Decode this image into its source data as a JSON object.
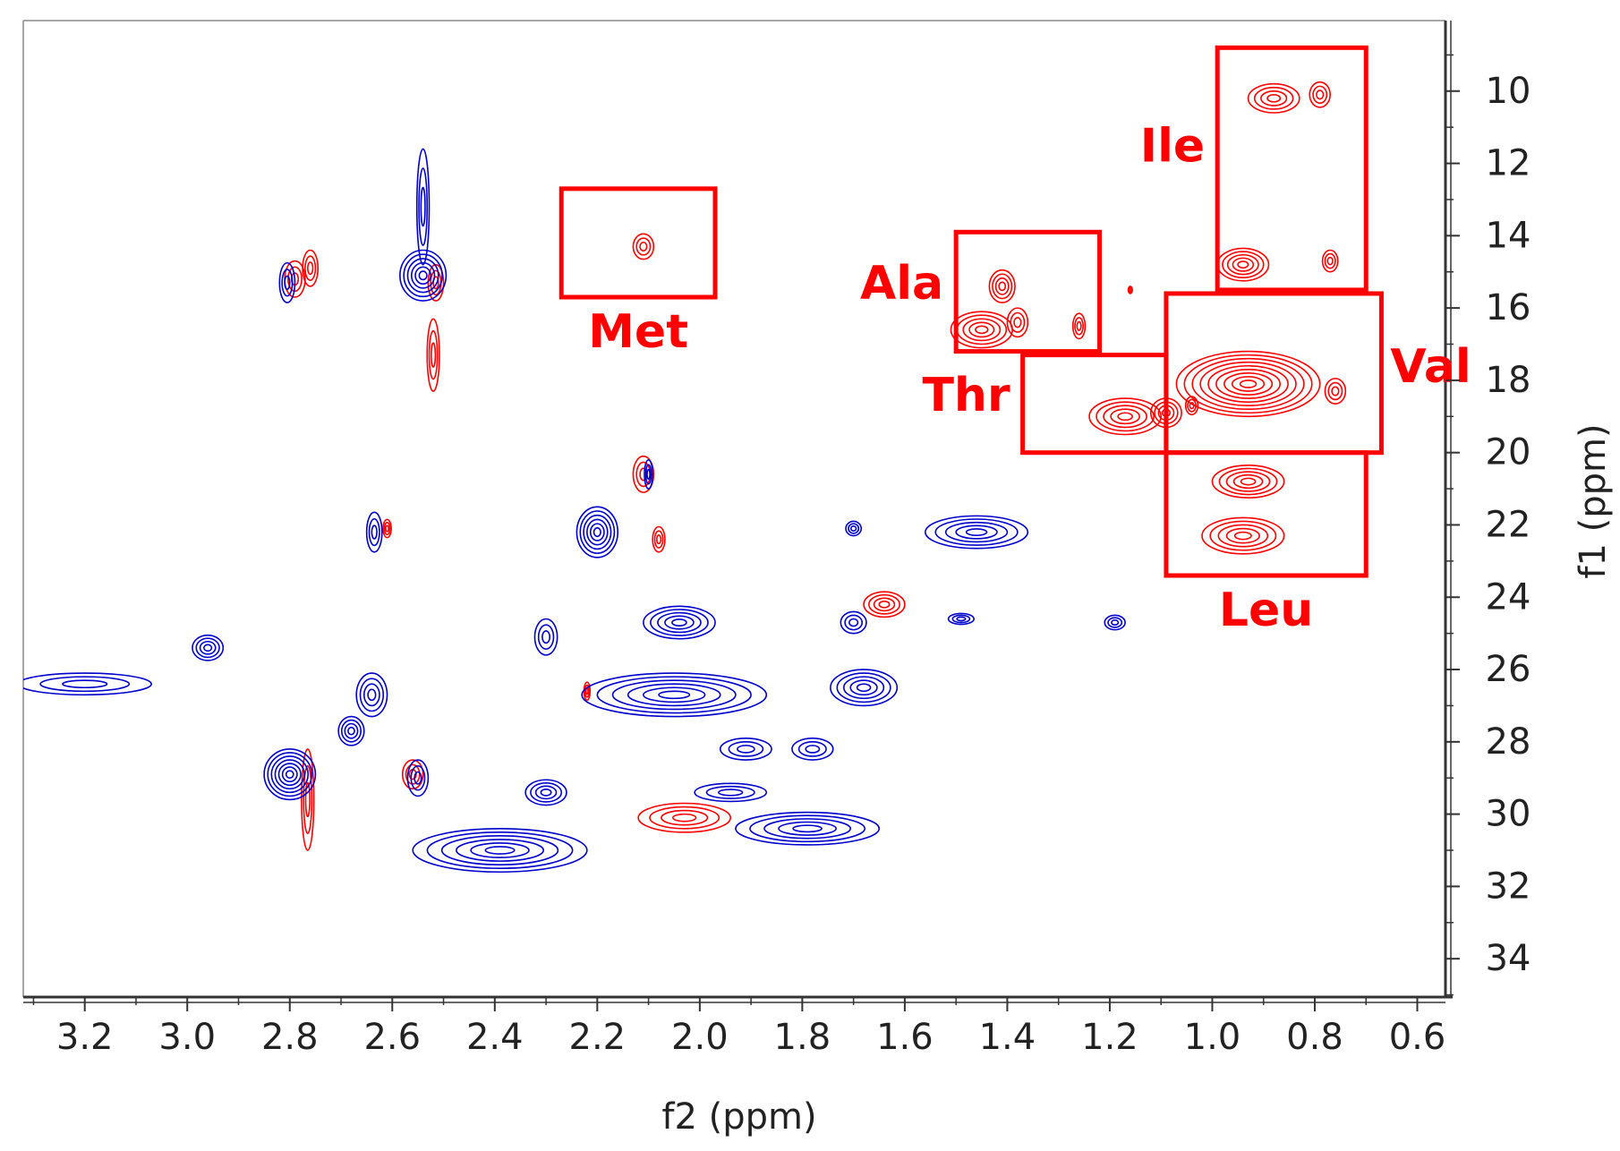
{
  "chart_data": {
    "type": "contour",
    "xlabel": "f2 (ppm)",
    "ylabel": "f1 (ppm)",
    "xlim": [
      0.545,
      3.32
    ],
    "ylim": [
      8.05,
      35.06
    ],
    "x_reversed": true,
    "y_reversed": true,
    "xticks": [
      {
        "value": 3.2,
        "label": "3.2"
      },
      {
        "value": 3.0,
        "label": "3.0"
      },
      {
        "value": 2.8,
        "label": "2.8"
      },
      {
        "value": 2.6,
        "label": "2.6"
      },
      {
        "value": 2.4,
        "label": "2.4"
      },
      {
        "value": 2.2,
        "label": "2.2"
      },
      {
        "value": 2.0,
        "label": "2.0"
      },
      {
        "value": 1.8,
        "label": "1.8"
      },
      {
        "value": 1.6,
        "label": "1.6"
      },
      {
        "value": 1.4,
        "label": "1.4"
      },
      {
        "value": 1.2,
        "label": "1.2"
      },
      {
        "value": 1.0,
        "label": "1.0"
      },
      {
        "value": 0.8,
        "label": "0.8"
      },
      {
        "value": 0.6,
        "label": "0.6"
      }
    ],
    "xminorticks": [
      3.3,
      3.1,
      2.9,
      2.7,
      2.5,
      2.3,
      2.1,
      1.9,
      1.7,
      1.5,
      1.3,
      1.1,
      0.9,
      0.7
    ],
    "yticks": [
      10,
      12,
      14,
      16,
      18,
      20,
      22,
      24,
      26,
      28,
      30,
      32,
      34
    ],
    "yminorticks": [
      9,
      11,
      13,
      15,
      17,
      19,
      21,
      23,
      25,
      27,
      29,
      31,
      33,
      35
    ],
    "series": [
      {
        "color": "#ff0000",
        "peaks": [
          {
            "x": 2.11,
            "y": 14.3,
            "rx": 0.02,
            "ry": 0.35
          },
          {
            "x": 0.88,
            "y": 10.2,
            "rx": 0.05,
            "ry": 0.4
          },
          {
            "x": 0.79,
            "y": 10.1,
            "rx": 0.02,
            "ry": 0.35
          },
          {
            "x": 0.94,
            "y": 14.8,
            "rx": 0.05,
            "ry": 0.45
          },
          {
            "x": 0.77,
            "y": 14.7,
            "rx": 0.015,
            "ry": 0.3
          },
          {
            "x": 1.45,
            "y": 16.6,
            "rx": 0.06,
            "ry": 0.5
          },
          {
            "x": 1.41,
            "y": 15.4,
            "rx": 0.025,
            "ry": 0.45
          },
          {
            "x": 1.38,
            "y": 16.4,
            "rx": 0.02,
            "ry": 0.4
          },
          {
            "x": 1.26,
            "y": 16.5,
            "rx": 0.012,
            "ry": 0.35
          },
          {
            "x": 1.17,
            "y": 19.0,
            "rx": 0.07,
            "ry": 0.5
          },
          {
            "x": 1.09,
            "y": 18.9,
            "rx": 0.03,
            "ry": 0.4
          },
          {
            "x": 0.93,
            "y": 18.1,
            "rx": 0.14,
            "ry": 0.9
          },
          {
            "x": 1.04,
            "y": 18.7,
            "rx": 0.012,
            "ry": 0.25
          },
          {
            "x": 0.76,
            "y": 18.3,
            "rx": 0.02,
            "ry": 0.35
          },
          {
            "x": 0.93,
            "y": 20.8,
            "rx": 0.07,
            "ry": 0.45
          },
          {
            "x": 0.94,
            "y": 22.3,
            "rx": 0.08,
            "ry": 0.5
          },
          {
            "x": 2.11,
            "y": 20.6,
            "rx": 0.02,
            "ry": 0.5
          },
          {
            "x": 2.08,
            "y": 22.4,
            "rx": 0.012,
            "ry": 0.35
          },
          {
            "x": 1.64,
            "y": 24.2,
            "rx": 0.04,
            "ry": 0.35
          },
          {
            "x": 2.03,
            "y": 30.1,
            "rx": 0.09,
            "ry": 0.4
          },
          {
            "x": 2.79,
            "y": 15.2,
            "rx": 0.02,
            "ry": 0.5
          },
          {
            "x": 2.76,
            "y": 14.9,
            "rx": 0.015,
            "ry": 0.5
          },
          {
            "x": 2.515,
            "y": 15.3,
            "rx": 0.015,
            "ry": 0.5
          },
          {
            "x": 2.52,
            "y": 17.3,
            "rx": 0.012,
            "ry": 1.0
          },
          {
            "x": 2.765,
            "y": 29.6,
            "rx": 0.012,
            "ry": 1.4
          },
          {
            "x": 2.56,
            "y": 28.9,
            "rx": 0.02,
            "ry": 0.4
          },
          {
            "x": 2.61,
            "y": 22.1,
            "rx": 0.008,
            "ry": 0.25
          },
          {
            "x": 2.22,
            "y": 26.6,
            "rx": 0.006,
            "ry": 0.25
          },
          {
            "x": 1.16,
            "y": 15.5,
            "rx": 0.004,
            "ry": 0.1
          }
        ]
      },
      {
        "color": "#0000cc",
        "peaks": [
          {
            "x": 2.54,
            "y": 15.1,
            "rx": 0.045,
            "ry": 0.7
          },
          {
            "x": 2.54,
            "y": 13.2,
            "rx": 0.012,
            "ry": 1.6
          },
          {
            "x": 2.805,
            "y": 15.3,
            "rx": 0.015,
            "ry": 0.55
          },
          {
            "x": 2.635,
            "y": 22.2,
            "rx": 0.015,
            "ry": 0.55
          },
          {
            "x": 2.2,
            "y": 22.2,
            "rx": 0.04,
            "ry": 0.7
          },
          {
            "x": 2.1,
            "y": 20.6,
            "rx": 0.008,
            "ry": 0.4
          },
          {
            "x": 1.7,
            "y": 22.1,
            "rx": 0.015,
            "ry": 0.2
          },
          {
            "x": 1.46,
            "y": 22.2,
            "rx": 0.1,
            "ry": 0.45
          },
          {
            "x": 2.96,
            "y": 25.4,
            "rx": 0.03,
            "ry": 0.35
          },
          {
            "x": 3.2,
            "y": 26.4,
            "rx": 0.13,
            "ry": 0.3
          },
          {
            "x": 2.3,
            "y": 25.1,
            "rx": 0.022,
            "ry": 0.5
          },
          {
            "x": 2.04,
            "y": 24.7,
            "rx": 0.07,
            "ry": 0.45
          },
          {
            "x": 2.05,
            "y": 26.7,
            "rx": 0.18,
            "ry": 0.6
          },
          {
            "x": 1.68,
            "y": 26.5,
            "rx": 0.065,
            "ry": 0.5
          },
          {
            "x": 1.7,
            "y": 24.7,
            "rx": 0.025,
            "ry": 0.3
          },
          {
            "x": 1.49,
            "y": 24.6,
            "rx": 0.025,
            "ry": 0.15
          },
          {
            "x": 1.19,
            "y": 24.7,
            "rx": 0.02,
            "ry": 0.2
          },
          {
            "x": 2.64,
            "y": 26.7,
            "rx": 0.03,
            "ry": 0.6
          },
          {
            "x": 2.68,
            "y": 27.7,
            "rx": 0.025,
            "ry": 0.4
          },
          {
            "x": 2.8,
            "y": 28.9,
            "rx": 0.05,
            "ry": 0.7
          },
          {
            "x": 2.55,
            "y": 29.0,
            "rx": 0.02,
            "ry": 0.5
          },
          {
            "x": 2.3,
            "y": 29.4,
            "rx": 0.04,
            "ry": 0.35
          },
          {
            "x": 1.91,
            "y": 28.2,
            "rx": 0.05,
            "ry": 0.3
          },
          {
            "x": 1.78,
            "y": 28.2,
            "rx": 0.04,
            "ry": 0.3
          },
          {
            "x": 1.94,
            "y": 29.4,
            "rx": 0.07,
            "ry": 0.25
          },
          {
            "x": 2.39,
            "y": 31.0,
            "rx": 0.17,
            "ry": 0.6
          },
          {
            "x": 1.79,
            "y": 30.4,
            "rx": 0.14,
            "ry": 0.45
          }
        ]
      }
    ],
    "regions": [
      {
        "label": "Met",
        "x": [
          2.27,
          1.97
        ],
        "y": [
          12.7,
          15.7
        ],
        "label_side": "below"
      },
      {
        "label": "Ala",
        "x": [
          1.5,
          1.22
        ],
        "y": [
          13.9,
          17.2
        ],
        "label_side": "left"
      },
      {
        "label": "Thr",
        "x": [
          1.37,
          1.09
        ],
        "y": [
          17.3,
          20.0
        ],
        "label_side": "left"
      },
      {
        "label": "Ile",
        "x": [
          0.99,
          0.7
        ],
        "y": [
          8.8,
          15.5
        ],
        "label_side": "left"
      },
      {
        "label": "Val",
        "x": [
          1.09,
          0.67
        ],
        "y": [
          15.6,
          20.0
        ],
        "label_side": "right"
      },
      {
        "label": "Leu",
        "x": [
          1.09,
          0.7
        ],
        "y": [
          20.0,
          23.4
        ],
        "label_side": "below"
      }
    ],
    "region_color": "#ff0000"
  }
}
